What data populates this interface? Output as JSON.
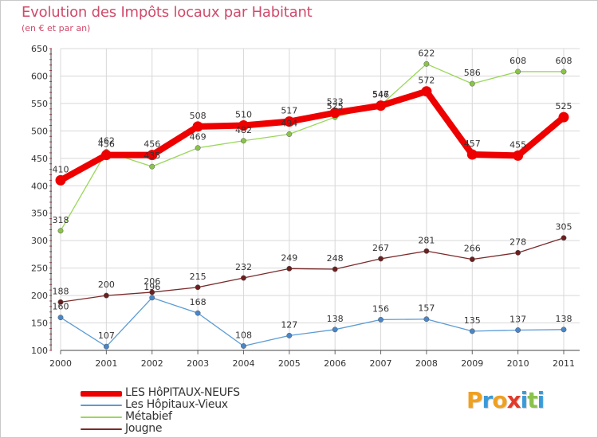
{
  "header": {
    "title": "Evolution des Impôts locaux par Habitant",
    "subtitle": "(en € et par an)"
  },
  "logo": {
    "letters": [
      "P",
      "r",
      "o",
      "x",
      "i",
      "t",
      "i"
    ],
    "colors": [
      "#f0a020",
      "#3a9ad9",
      "#f0a020",
      "#e23a2a",
      "#3a9ad9",
      "#8bc34a",
      "#3a9ad9"
    ]
  },
  "chart_data": {
    "type": "line",
    "title": "Evolution des Impôts locaux par Habitant",
    "subtitle": "(en € et par an)",
    "xlabel": "",
    "ylabel": "",
    "x": [
      "2000",
      "2001",
      "2002",
      "2003",
      "2004",
      "2005",
      "2006",
      "2007",
      "2008",
      "2009",
      "2010",
      "2011"
    ],
    "ylim": [
      100,
      650
    ],
    "yticks": [
      100,
      150,
      200,
      250,
      300,
      350,
      400,
      450,
      500,
      550,
      600,
      650
    ],
    "grid": true,
    "legend_position": "bottom-left",
    "series": [
      {
        "name": "LES HôPITAUX-NEUFS",
        "color": "#ee0000",
        "style": "thick",
        "values": [
          410,
          456,
          456,
          508,
          510,
          517,
          533,
          546,
          572,
          457,
          455,
          525
        ],
        "labels": [
          "410",
          "456",
          "456",
          "508",
          "510",
          "517",
          "533",
          "546",
          "572",
          "457",
          "455",
          "525"
        ]
      },
      {
        "name": "Les Hôpitaux-Vieux",
        "color": "#5b9bd5",
        "marker_color": "#4a86c6",
        "style": "thin",
        "values": [
          160,
          107,
          196,
          168,
          108,
          127,
          138,
          156,
          157,
          135,
          137,
          138
        ],
        "labels": [
          "160",
          "107",
          "196",
          "168",
          "108",
          "127",
          "138",
          "156",
          "157",
          "135",
          "137",
          "138"
        ]
      },
      {
        "name": "Métabief",
        "color": "#9ad75a",
        "marker_color": "#8bc34a",
        "style": "thin",
        "values": [
          318,
          462,
          435,
          469,
          482,
          494,
          525,
          547,
          622,
          586,
          608,
          608
        ],
        "labels": [
          "318",
          "462",
          "435",
          "469",
          "482",
          "494",
          "525",
          "547",
          "622",
          "586",
          "608",
          "608"
        ]
      },
      {
        "name": "Jougne",
        "color": "#7b2a2a",
        "marker_color": "#6b1f1f",
        "style": "thin",
        "values": [
          188,
          200,
          206,
          215,
          232,
          249,
          248,
          267,
          281,
          266,
          278,
          305
        ],
        "labels": [
          "188",
          "200",
          "206",
          "215",
          "232",
          "249",
          "248",
          "267",
          "281",
          "266",
          "278",
          "305"
        ]
      }
    ]
  }
}
